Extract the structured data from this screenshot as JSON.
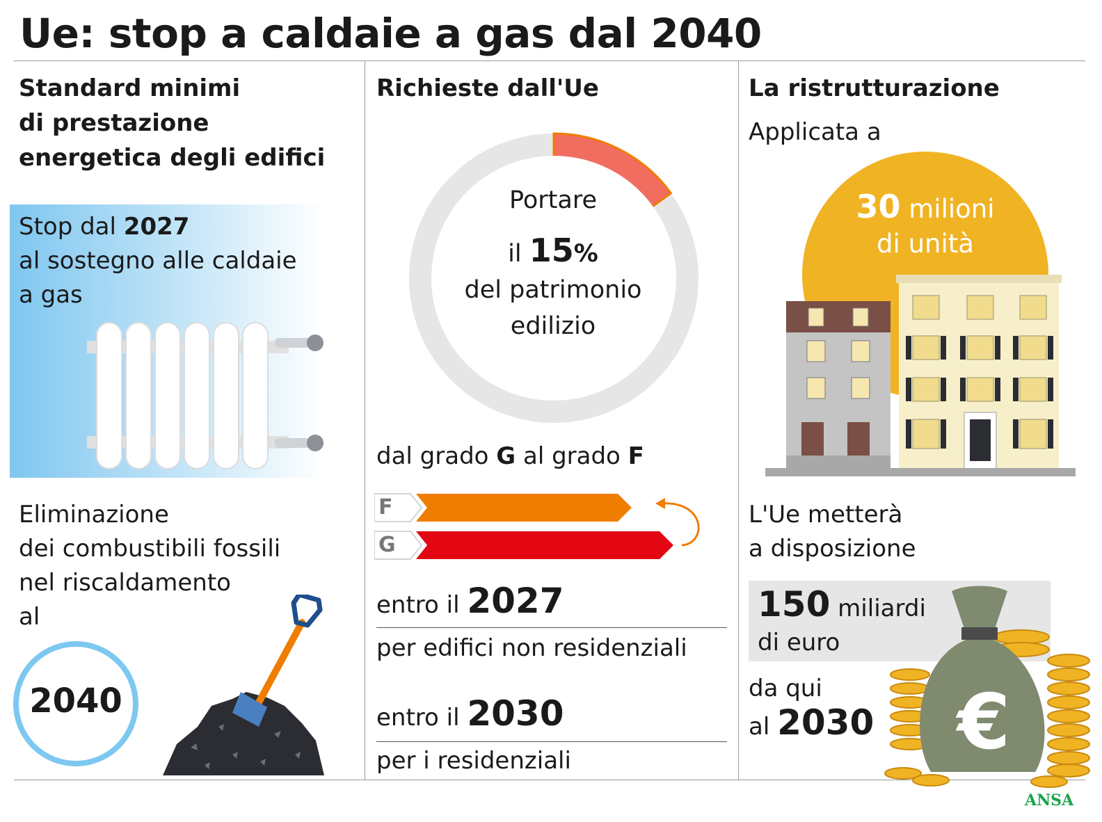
{
  "title": "Ue: stop a caldaie a gas dal 2040",
  "col1": {
    "heading_lines": [
      "Standard minimi",
      "di prestazione",
      "energetica degli edifici"
    ],
    "stop_prefix": "Stop dal ",
    "stop_year": "2027",
    "stop_lines": [
      "al sostegno alle caldaie",
      "a gas"
    ],
    "elim_lines": [
      "Eliminazione",
      "dei combustibili fossili",
      "nel riscaldamento",
      "al"
    ],
    "year_circle": "2040"
  },
  "col2": {
    "heading": "Richieste dall'Ue",
    "donut": {
      "share_percent": 15,
      "line1": "Portare",
      "line2_prefix": "il ",
      "line2_value": "15",
      "line2_suffix": "%",
      "line3": "del patrimonio",
      "line4": "edilizio"
    },
    "grade": {
      "text1": "dal grado ",
      "g": "G",
      "text2": " al grado ",
      "f": "F"
    },
    "bars": [
      {
        "label": "F",
        "color": "#ef7d00"
      },
      {
        "label": "G",
        "color": "#e30613"
      }
    ],
    "deadline1": {
      "prefix": "entro il ",
      "year": "2027",
      "desc": "per edifici non residenziali"
    },
    "deadline2": {
      "prefix": "entro il ",
      "year": "2030",
      "desc": "per i residenziali"
    }
  },
  "col3": {
    "heading": "La ristrutturazione",
    "applied": "Applicata a",
    "units_number": "30",
    "units_word": " milioni",
    "units_line2": "di unità",
    "funds_lines": [
      "L'Ue metterà",
      "a disposizione"
    ],
    "amount_number": "150",
    "amount_word": " miliardi",
    "amount_line2": "di euro",
    "until_line1": "da qui",
    "until_prefix": "al ",
    "until_year": "2030"
  },
  "credit": "ANSA",
  "colors": {
    "donut_track": "#e6e6e6",
    "donut_fill": "#f06d5f",
    "sun": "#f0b323",
    "circle_blue": "#7cc8f0",
    "euro_box": "#e6e6e6",
    "ansa_green": "#1aa34a"
  }
}
